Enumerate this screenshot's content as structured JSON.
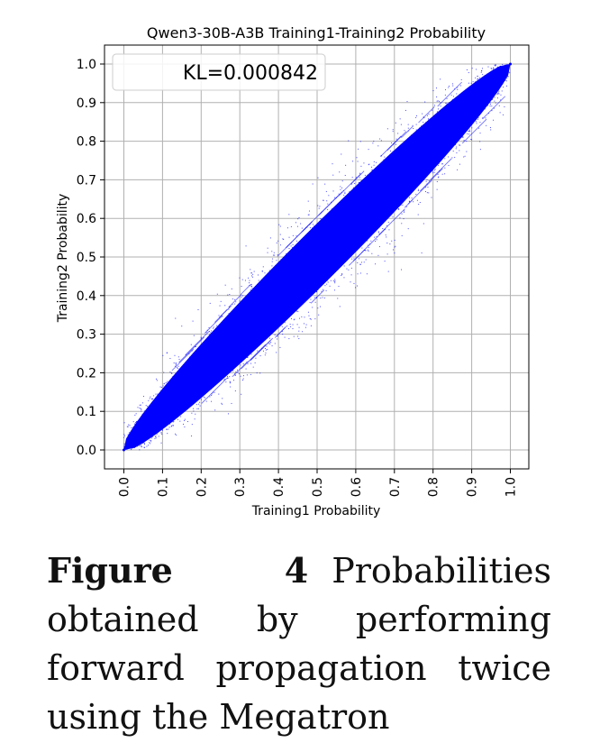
{
  "chart_data": {
    "type": "scatter",
    "title": "Qwen3-30B-A3B Training1-Training2 Probability",
    "xlabel": "Training1 Probability",
    "ylabel": "Training2 Probability",
    "xlim": [
      0.0,
      1.0
    ],
    "ylim": [
      0.0,
      1.0
    ],
    "xticks": [
      "0.0",
      "0.1",
      "0.2",
      "0.3",
      "0.4",
      "0.5",
      "0.6",
      "0.7",
      "0.8",
      "0.9",
      "1.0"
    ],
    "yticks": [
      "0.0",
      "0.1",
      "0.2",
      "0.3",
      "0.4",
      "0.5",
      "0.6",
      "0.7",
      "0.8",
      "0.9",
      "1.0"
    ],
    "grid": true,
    "legend_location": "upper left",
    "annotation": "KL=0.000842",
    "point_color": "#0000ff",
    "band_halfwidth_at_midpoint": 0.08,
    "points_sampled": [
      [
        0.0,
        0.0
      ],
      [
        0.1,
        0.1
      ],
      [
        0.2,
        0.2
      ],
      [
        0.3,
        0.3
      ],
      [
        0.4,
        0.4
      ],
      [
        0.5,
        0.5
      ],
      [
        0.6,
        0.6
      ],
      [
        0.7,
        0.7
      ],
      [
        0.8,
        0.8
      ],
      [
        0.9,
        0.9
      ],
      [
        1.0,
        1.0
      ]
    ]
  },
  "caption": {
    "label": "Figure 4",
    "text": "Probabilities obtained by performing forward propagation twice using the Megatron"
  }
}
